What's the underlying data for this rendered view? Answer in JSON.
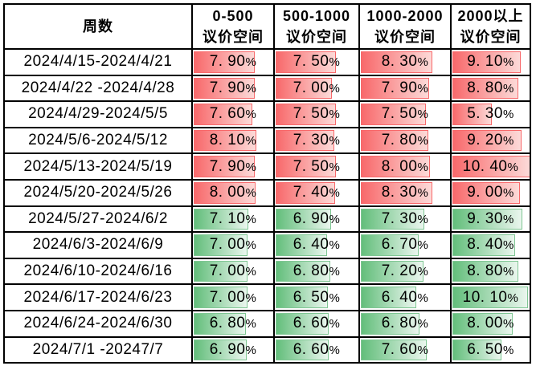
{
  "table": {
    "corner_header": "周数",
    "column_headers": [
      {
        "line1": "0-500",
        "line2": "议价空间"
      },
      {
        "line1": "500-1000",
        "line2": "议价空间"
      },
      {
        "line1": "1000-2000",
        "line2": "议价空间"
      },
      {
        "line1": "2000以上",
        "line2": "议价空间"
      }
    ],
    "bar_max": 10.4,
    "colors": {
      "red_bar_start": "#F8696B",
      "red_bar_end": "#FCDAD8",
      "red_bar_border": "#F8696B",
      "green_bar_start": "#63BE7B",
      "green_bar_end": "#EAF6EE",
      "green_bar_border": "#7FC693",
      "grid": "#000000",
      "text": "#000000",
      "background": "#FFFFFF"
    },
    "rows": [
      {
        "week": "2024/4/15-2024/4/21",
        "color": "red",
        "cells": [
          {
            "value": 7.9,
            "label": "7. 90%"
          },
          {
            "value": 7.5,
            "label": "7. 50%"
          },
          {
            "value": 8.3,
            "label": "8. 30%"
          },
          {
            "value": 9.1,
            "label": "9. 10%"
          }
        ]
      },
      {
        "week": "2024/4/22 -2024/4/28",
        "color": "red",
        "cells": [
          {
            "value": 7.9,
            "label": "7. 90%"
          },
          {
            "value": 7.0,
            "label": "7. 00%"
          },
          {
            "value": 7.9,
            "label": "7. 90%"
          },
          {
            "value": 8.8,
            "label": "8. 80%"
          }
        ]
      },
      {
        "week": "2024/4/29-2024/5/5",
        "color": "red",
        "cells": [
          {
            "value": 7.6,
            "label": "7. 60%"
          },
          {
            "value": 7.5,
            "label": "7. 50%"
          },
          {
            "value": 7.5,
            "label": "7. 50%"
          },
          {
            "value": 5.3,
            "label": "5. 30%"
          }
        ]
      },
      {
        "week": "2024/5/6-2024/5/12",
        "color": "red",
        "cells": [
          {
            "value": 8.1,
            "label": "8. 10%"
          },
          {
            "value": 7.3,
            "label": "7. 30%"
          },
          {
            "value": 7.8,
            "label": "7. 80%"
          },
          {
            "value": 9.2,
            "label": "9. 20%"
          }
        ]
      },
      {
        "week": "2024/5/13-2024/5/19",
        "color": "red",
        "cells": [
          {
            "value": 7.9,
            "label": "7. 90%"
          },
          {
            "value": 7.5,
            "label": "7. 50%"
          },
          {
            "value": 8.0,
            "label": "8. 00%"
          },
          {
            "value": 10.4,
            "label": "10. 40%"
          }
        ]
      },
      {
        "week": "2024/5/20-2024/5/26",
        "color": "red",
        "cells": [
          {
            "value": 8.0,
            "label": "8. 00%"
          },
          {
            "value": 7.4,
            "label": "7. 40%"
          },
          {
            "value": 8.3,
            "label": "8. 30%"
          },
          {
            "value": 9.0,
            "label": "9. 00%"
          }
        ]
      },
      {
        "week": "2024/5/27-2024/6/2",
        "color": "green",
        "cells": [
          {
            "value": 7.1,
            "label": "7. 10%"
          },
          {
            "value": 6.9,
            "label": "6. 90%"
          },
          {
            "value": 7.3,
            "label": "7. 30%"
          },
          {
            "value": 9.3,
            "label": "9. 30%"
          }
        ]
      },
      {
        "week": "2024/6/3-2024/6/9",
        "color": "green",
        "cells": [
          {
            "value": 7.0,
            "label": "7. 00%"
          },
          {
            "value": 6.4,
            "label": "6. 40%"
          },
          {
            "value": 6.7,
            "label": "6. 70%"
          },
          {
            "value": 8.4,
            "label": "8. 40%"
          }
        ]
      },
      {
        "week": "2024/6/10-2024/6/16",
        "color": "green",
        "cells": [
          {
            "value": 7.0,
            "label": "7. 00%"
          },
          {
            "value": 6.8,
            "label": "6. 80%"
          },
          {
            "value": 7.2,
            "label": "7. 20%"
          },
          {
            "value": 8.8,
            "label": "8. 80%"
          }
        ]
      },
      {
        "week": "2024/6/17-2024/6/23",
        "color": "green",
        "cells": [
          {
            "value": 7.0,
            "label": "7. 00%"
          },
          {
            "value": 6.5,
            "label": "6. 50%"
          },
          {
            "value": 6.4,
            "label": "6. 40%"
          },
          {
            "value": 10.1,
            "label": "10. 10%"
          }
        ]
      },
      {
        "week": "2024/6/24-2024/6/30",
        "color": "green",
        "cells": [
          {
            "value": 6.8,
            "label": "6. 80%"
          },
          {
            "value": 6.6,
            "label": "6. 60%"
          },
          {
            "value": 6.8,
            "label": "6. 80%"
          },
          {
            "value": 8.0,
            "label": "8. 00%"
          }
        ]
      },
      {
        "week": "2024/7/1 -20247/7",
        "color": "green",
        "cells": [
          {
            "value": 6.9,
            "label": "6. 90%"
          },
          {
            "value": 6.6,
            "label": "6. 60%"
          },
          {
            "value": 7.6,
            "label": "7. 60%"
          },
          {
            "value": 6.5,
            "label": "6. 50%"
          }
        ]
      }
    ]
  },
  "chart_data": {
    "type": "table",
    "title": "",
    "row_header_label": "周数",
    "categories": [
      "2024/4/15-2024/4/21",
      "2024/4/22 -2024/4/28",
      "2024/4/29-2024/5/5",
      "2024/5/6-2024/5/12",
      "2024/5/13-2024/5/19",
      "2024/5/20-2024/5/26",
      "2024/5/27-2024/6/2",
      "2024/6/3-2024/6/9",
      "2024/6/10-2024/6/16",
      "2024/6/17-2024/6/23",
      "2024/6/24-2024/6/30",
      "2024/7/1 -20247/7"
    ],
    "series": [
      {
        "name": "0-500 议价空间",
        "values": [
          7.9,
          7.9,
          7.6,
          8.1,
          7.9,
          8.0,
          7.1,
          7.0,
          7.0,
          7.0,
          6.8,
          6.9
        ]
      },
      {
        "name": "500-1000 议价空间",
        "values": [
          7.5,
          7.0,
          7.5,
          7.3,
          7.5,
          7.4,
          6.9,
          6.4,
          6.8,
          6.5,
          6.6,
          6.6
        ]
      },
      {
        "name": "1000-2000 议价空间",
        "values": [
          8.3,
          7.9,
          7.5,
          7.8,
          8.0,
          8.3,
          7.3,
          6.7,
          7.2,
          6.4,
          6.8,
          7.6
        ]
      },
      {
        "name": "2000以上 议价空间",
        "values": [
          9.1,
          8.8,
          5.3,
          9.2,
          10.4,
          9.0,
          9.3,
          8.4,
          8.8,
          10.1,
          8.0,
          6.5
        ]
      }
    ],
    "unit": "%",
    "bar_scale_max": 10.4,
    "row_bar_colors": [
      "red",
      "red",
      "red",
      "red",
      "red",
      "red",
      "green",
      "green",
      "green",
      "green",
      "green",
      "green"
    ],
    "layout_hints": {
      "data_bars": "in-cell gradient bars, length proportional to value",
      "grid": true
    }
  }
}
